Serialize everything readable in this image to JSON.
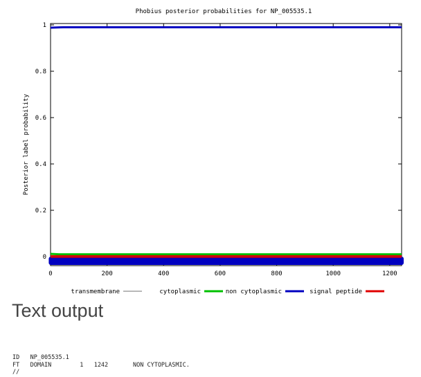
{
  "chart_data": {
    "type": "line",
    "title": "Phobius posterior probabilities for NP_005535.1",
    "ylabel": "Posterior label probability",
    "xlabel": "",
    "xlim": [
      0,
      1242
    ],
    "ylim": [
      0,
      1
    ],
    "x_ticks": [
      "0",
      "200",
      "400",
      "600",
      "800",
      "1000",
      "1200"
    ],
    "y_ticks": [
      "0",
      "0.2",
      "0.4",
      "0.6",
      "0.8",
      "1"
    ],
    "grid": false,
    "legend_position": "bottom",
    "series": [
      {
        "name": "transmembrane",
        "color": "#a0a0a0",
        "x": [
          0,
          1242
        ],
        "y": [
          0.0,
          0.0
        ]
      },
      {
        "name": "cytoplasmic",
        "color": "#00c000",
        "x": [
          0,
          30,
          1242
        ],
        "y": [
          0.012,
          0.01,
          0.01
        ]
      },
      {
        "name": "non cytoplasmic",
        "color": "#0000c0",
        "x": [
          0,
          45,
          1242
        ],
        "y": [
          0.988,
          0.99,
          0.99
        ]
      },
      {
        "name": "signal peptide",
        "color": "#e00000",
        "x": [
          0,
          1242
        ],
        "y": [
          0.002,
          0.002
        ]
      }
    ],
    "annotations": [
      {
        "label": "non cytoplasmic region bar",
        "color": "#0000c0",
        "x_start": 1,
        "x_end": 1242,
        "y": 0
      }
    ]
  },
  "text_output": {
    "heading": "Text output",
    "lines": [
      "ID   NP_005535.1",
      "FT   DOMAIN        1   1242       NON CYTOPLASMIC.",
      "//"
    ]
  }
}
